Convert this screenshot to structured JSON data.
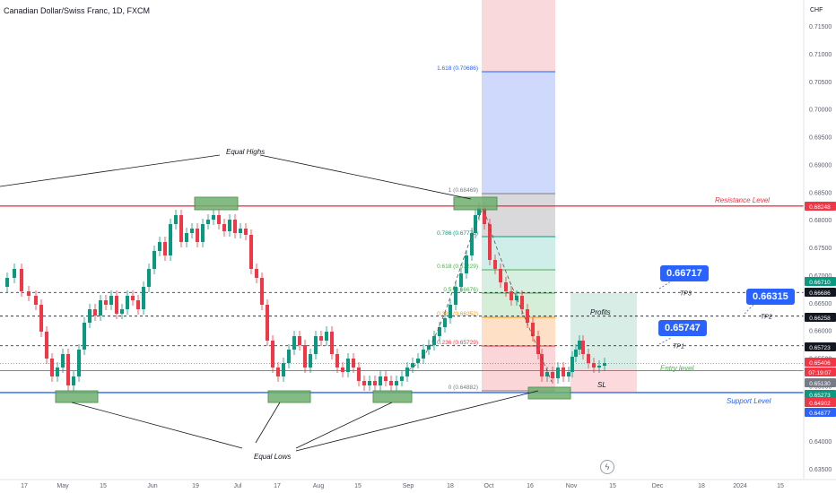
{
  "header": {
    "symbol_title": "Canadian Dollar/Swiss Franc, 1D, FXCM",
    "currency": "CHF"
  },
  "chart_data": {
    "type": "candlestick",
    "x_tick_labels": [
      "17",
      "May",
      "15",
      "Jun",
      "19",
      "Jul",
      "17",
      "Aug",
      "15",
      "Sep",
      "18",
      "Oct",
      "16",
      "Nov",
      "15",
      "Dec",
      "18",
      "2024",
      "15"
    ],
    "y_tick_labels": [
      "0.71500",
      "0.71000",
      "0.70500",
      "0.70000",
      "0.69500",
      "0.69000",
      "0.68500",
      "0.68000",
      "0.67500",
      "0.67000",
      "0.66500",
      "0.66000",
      "0.65500",
      "0.65000",
      "0.64500",
      "0.64000",
      "0.63500"
    ],
    "ylim": [
      0.6345,
      0.7165
    ],
    "price_tags": [
      {
        "text": "0.68248",
        "color": "#f23645",
        "y": 0.68248
      },
      {
        "text": "0.66710",
        "color": "#089981",
        "y": 0.6671
      },
      {
        "text": "0.66686",
        "color": "#131722",
        "y": 0.66686
      },
      {
        "text": "0.66258",
        "color": "#131722",
        "y": 0.66258
      },
      {
        "text": "0.65723",
        "color": "#131722",
        "y": 0.65723
      },
      {
        "text": "0.65406",
        "color": "#f23645",
        "y": 0.65406
      },
      {
        "text": "07:19:07",
        "color": "#f23645",
        "y": 0.6525
      },
      {
        "text": "0.65130",
        "color": "#787b86",
        "y": 0.6513
      },
      {
        "text": "0.65273",
        "color": "#089981",
        "y": 0.6498
      },
      {
        "text": "0.64902",
        "color": "#f23645",
        "y": 0.64902
      },
      {
        "text": "0.64877",
        "color": "#2962ff",
        "y": 0.64877
      }
    ],
    "levels": [
      {
        "label": "Resistance Level",
        "value": 0.68248,
        "color": "#f23645"
      },
      {
        "label": "Support Level",
        "value": 0.64877,
        "color": "#2962ff"
      },
      {
        "label": "Entry level",
        "value": 0.65273,
        "color": "#4caf50"
      }
    ],
    "targets": [
      {
        "label": "TP3",
        "value": 0.66686,
        "callout": "0.66717"
      },
      {
        "label": "TP2",
        "value": 0.66258,
        "callout": "0.66315"
      },
      {
        "label": "TP1",
        "value": 0.65723,
        "callout": "0.65747"
      }
    ],
    "fibonacci": [
      {
        "ratio": "1.618",
        "text": "1.618 (0.70686)",
        "value": 0.70686,
        "color": "#2962ff"
      },
      {
        "ratio": "1",
        "text": "1 (0.68469)",
        "value": 0.68469,
        "color": "#787b86"
      },
      {
        "ratio": "0.786",
        "text": "0.786 (0.67775)",
        "value": 0.67775,
        "color": "#089981"
      },
      {
        "ratio": "0.618",
        "text": "0.618 (0.67229)",
        "value": 0.67229,
        "color": "#4caf50"
      },
      {
        "ratio": "0.5",
        "text": "0.5 (0.66676)",
        "value": 0.66676,
        "color": "#4caf50"
      },
      {
        "ratio": "0.382",
        "text": "0.382 (0.66252)",
        "value": 0.66252,
        "color": "#ff9800"
      },
      {
        "ratio": "0.236",
        "text": "0.236 (0.65729)",
        "value": 0.65729,
        "color": "#f23645"
      },
      {
        "ratio": "0",
        "text": "0 (0.64882)",
        "value": 0.64882,
        "color": "#787b86"
      }
    ],
    "annotations": {
      "equal_highs": "Equal Highs",
      "equal_lows": "Equal Lows",
      "profits": "Profits",
      "sl": "SL"
    }
  }
}
